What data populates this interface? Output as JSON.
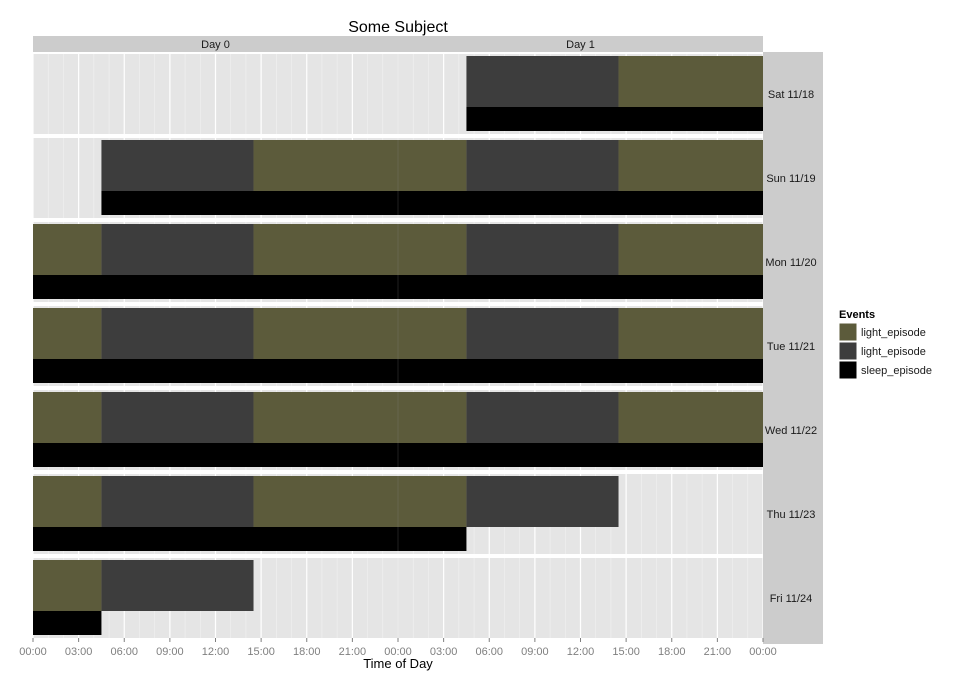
{
  "chart_data": {
    "type": "bar",
    "title": "Some Subject",
    "xlabel": "Time of Day",
    "ylabel": "",
    "xlim": [
      0,
      48
    ],
    "x_ticks": [
      0,
      3,
      6,
      9,
      12,
      15,
      18,
      21,
      24,
      27,
      30,
      33,
      36,
      39,
      42,
      45,
      48
    ],
    "x_tick_labels": [
      "00:00",
      "03:00",
      "06:00",
      "09:00",
      "12:00",
      "15:00",
      "18:00",
      "21:00",
      "00:00",
      "03:00",
      "06:00",
      "09:00",
      "12:00",
      "15:00",
      "18:00",
      "21:00",
      "00:00"
    ],
    "column_strips": [
      {
        "label": "Day 0",
        "x_range": [
          0,
          24
        ]
      },
      {
        "label": "Day 1",
        "x_range": [
          24,
          48
        ]
      }
    ],
    "grid": true,
    "legend": {
      "title": "Events",
      "placement": "right",
      "entries": [
        {
          "label": "light_episode",
          "color": "#5c5b3b"
        },
        {
          "label": "light_episode",
          "color": "#3d3d3d"
        },
        {
          "label": "sleep_episode",
          "color": "#000000"
        }
      ]
    },
    "colors": {
      "light_episode_on": "#5c5b3b",
      "light_episode_off": "#3d3d3d",
      "sleep_episode": "#000000",
      "panel_bg": "#e5e5e5",
      "strip_bg": "#cccccc"
    },
    "rows": [
      {
        "label": "Sat 11/18",
        "light": [
          {
            "start": 28.5,
            "end": 38.5,
            "kind": "off"
          },
          {
            "start": 38.5,
            "end": 48,
            "kind": "on"
          }
        ],
        "sleep": [
          {
            "start": 28.5,
            "end": 48
          }
        ]
      },
      {
        "label": "Sun 11/19",
        "light": [
          {
            "start": 4.5,
            "end": 14.5,
            "kind": "off"
          },
          {
            "start": 14.5,
            "end": 28.5,
            "kind": "on"
          },
          {
            "start": 28.5,
            "end": 38.5,
            "kind": "off"
          },
          {
            "start": 38.5,
            "end": 48,
            "kind": "on"
          }
        ],
        "sleep": [
          {
            "start": 4.5,
            "end": 48
          }
        ]
      },
      {
        "label": "Mon 11/20",
        "light": [
          {
            "start": 0,
            "end": 4.5,
            "kind": "on"
          },
          {
            "start": 4.5,
            "end": 14.5,
            "kind": "off"
          },
          {
            "start": 14.5,
            "end": 28.5,
            "kind": "on"
          },
          {
            "start": 28.5,
            "end": 38.5,
            "kind": "off"
          },
          {
            "start": 38.5,
            "end": 48,
            "kind": "on"
          }
        ],
        "sleep": [
          {
            "start": 0,
            "end": 48
          }
        ]
      },
      {
        "label": "Tue 11/21",
        "light": [
          {
            "start": 0,
            "end": 4.5,
            "kind": "on"
          },
          {
            "start": 4.5,
            "end": 14.5,
            "kind": "off"
          },
          {
            "start": 14.5,
            "end": 28.5,
            "kind": "on"
          },
          {
            "start": 28.5,
            "end": 38.5,
            "kind": "off"
          },
          {
            "start": 38.5,
            "end": 48,
            "kind": "on"
          }
        ],
        "sleep": [
          {
            "start": 0,
            "end": 48
          }
        ]
      },
      {
        "label": "Wed 11/22",
        "light": [
          {
            "start": 0,
            "end": 4.5,
            "kind": "on"
          },
          {
            "start": 4.5,
            "end": 14.5,
            "kind": "off"
          },
          {
            "start": 14.5,
            "end": 28.5,
            "kind": "on"
          },
          {
            "start": 28.5,
            "end": 38.5,
            "kind": "off"
          },
          {
            "start": 38.5,
            "end": 48,
            "kind": "on"
          }
        ],
        "sleep": [
          {
            "start": 0,
            "end": 48
          }
        ]
      },
      {
        "label": "Thu 11/23",
        "light": [
          {
            "start": 0,
            "end": 4.5,
            "kind": "on"
          },
          {
            "start": 4.5,
            "end": 14.5,
            "kind": "off"
          },
          {
            "start": 14.5,
            "end": 28.5,
            "kind": "on"
          },
          {
            "start": 28.5,
            "end": 38.5,
            "kind": "off"
          }
        ],
        "sleep": [
          {
            "start": 0,
            "end": 28.5
          }
        ]
      },
      {
        "label": "Fri 11/24",
        "light": [
          {
            "start": 0,
            "end": 4.5,
            "kind": "on"
          },
          {
            "start": 4.5,
            "end": 14.5,
            "kind": "off"
          }
        ],
        "sleep": [
          {
            "start": 0,
            "end": 4.5
          }
        ]
      }
    ]
  }
}
